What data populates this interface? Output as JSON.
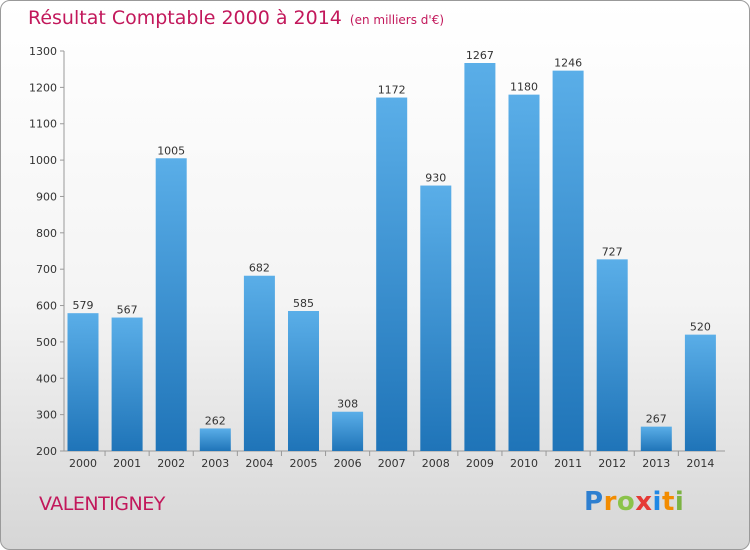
{
  "chart_data": {
    "type": "bar",
    "title": "Résultat Comptable 2000 à 2014",
    "subtitle": "(en milliers d'€)",
    "categories": [
      "2000",
      "2001",
      "2002",
      "2003",
      "2004",
      "2005",
      "2006",
      "2007",
      "2008",
      "2009",
      "2010",
      "2011",
      "2012",
      "2013",
      "2014"
    ],
    "values": [
      579,
      567,
      1005,
      262,
      682,
      585,
      308,
      1172,
      930,
      1267,
      1180,
      1246,
      727,
      267,
      520
    ],
    "ylim": [
      200,
      1300
    ],
    "yticks": [
      200,
      300,
      400,
      500,
      600,
      700,
      800,
      900,
      1000,
      1100,
      1200,
      1300
    ],
    "grid": false,
    "xlabel": "",
    "ylabel": ""
  },
  "location": "VALENTIGNEY",
  "logo": {
    "letters": [
      "P",
      "r",
      "o",
      "x",
      "i",
      "t",
      "i"
    ],
    "colors": [
      "#2e7fd0",
      "#f28c00",
      "#8bc34a",
      "#e53935",
      "#1e88e5",
      "#f28c00",
      "#7cb342"
    ]
  },
  "colors": {
    "title": "#c2185b",
    "bar_light": "#5aaee8",
    "bar_dark": "#1f74b8"
  }
}
